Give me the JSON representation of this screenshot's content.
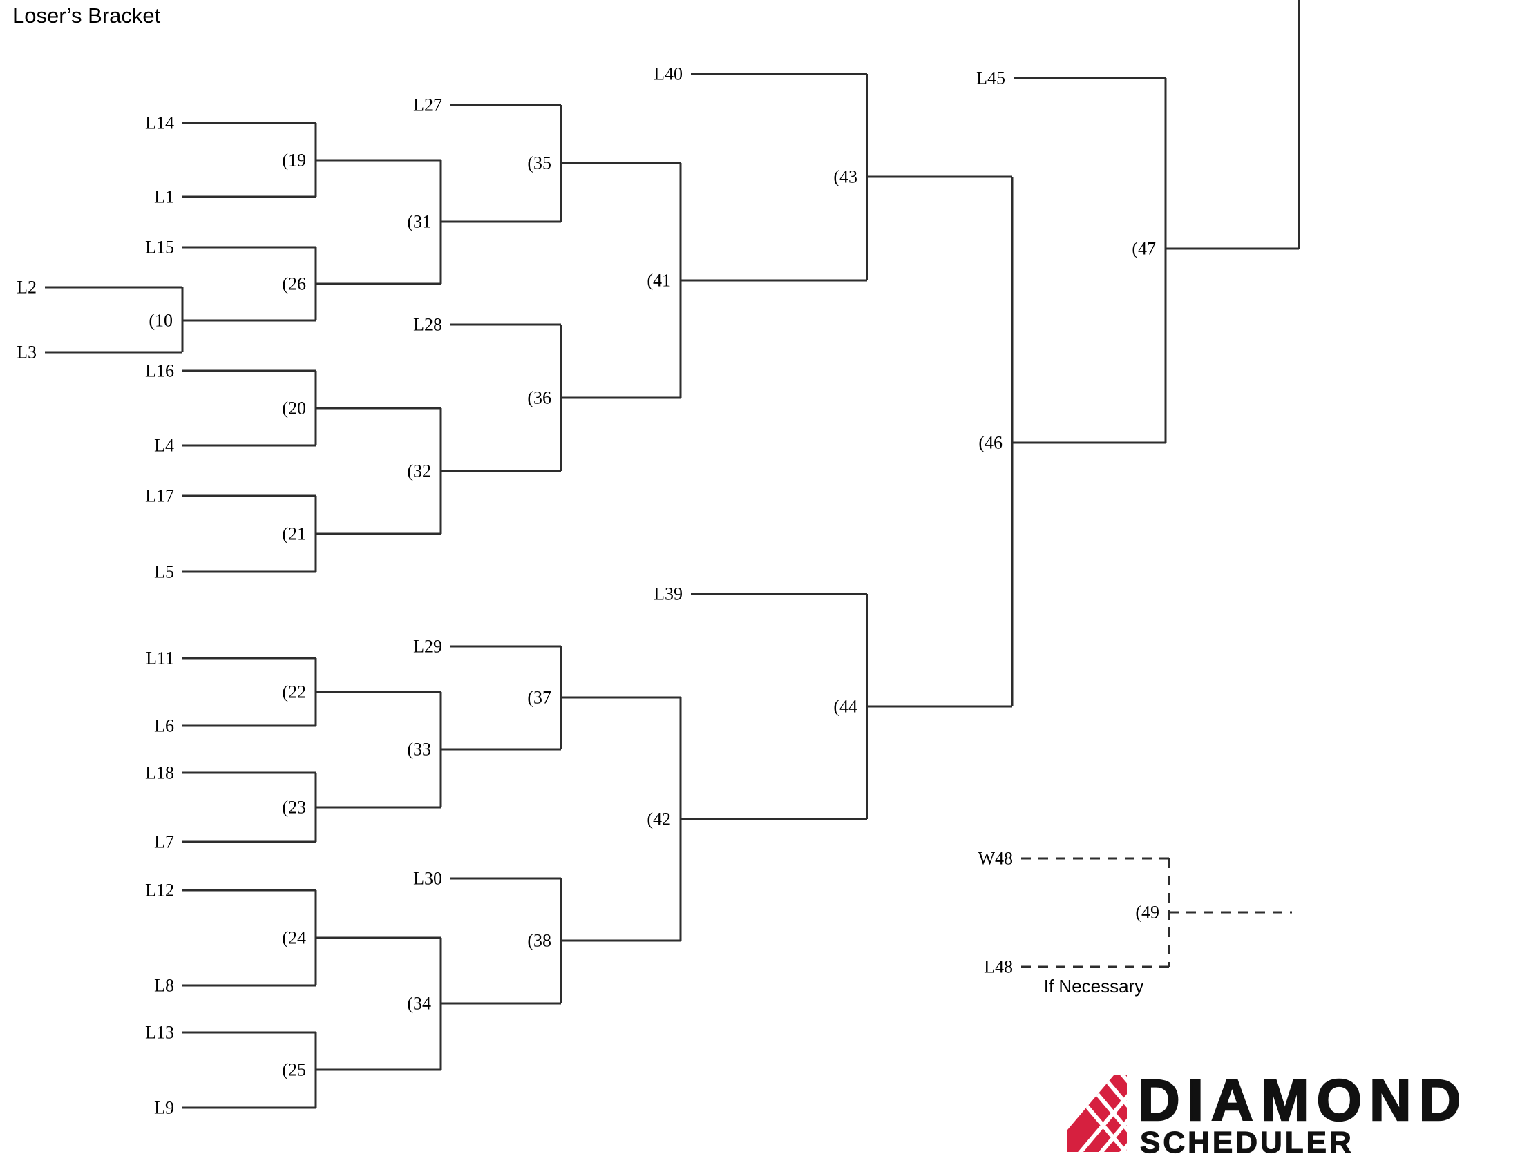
{
  "title": "Loser’s Bracket",
  "colors": {
    "line": "#2d2d2d",
    "text": "#000000",
    "logo_red": "#d6203f",
    "logo_black": "#111111"
  },
  "labels": {
    "L14": "L14",
    "L1": "L1",
    "L15": "L15",
    "L2": "L2",
    "L3": "L3",
    "L16": "L16",
    "L4": "L4",
    "L17": "L17",
    "L5": "L5",
    "L11": "L11",
    "L6": "L6",
    "L18": "L18",
    "L7": "L7",
    "L12": "L12",
    "L8": "L8",
    "L13": "L13",
    "L9": "L9",
    "L27": "L27",
    "L28": "L28",
    "L29": "L29",
    "L30": "L30",
    "L40": "L40",
    "L39": "L39",
    "L45": "L45",
    "W48": "W48",
    "L48": "L48",
    "g10": "(10",
    "g19": "(19",
    "g20": "(20",
    "g21": "(21",
    "g22": "(22",
    "g23": "(23",
    "g24": "(24",
    "g25": "(25",
    "g26": "(26",
    "g31": "(31",
    "g32": "(32",
    "g33": "(33",
    "g34": "(34",
    "g35": "(35",
    "g36": "(36",
    "g37": "(37",
    "g38": "(38",
    "g41": "(41",
    "g42": "(42",
    "g43": "(43",
    "g44": "(44",
    "g46": "(46",
    "g47": "(47",
    "g49": "(49"
  },
  "structure": {
    "games": [
      {
        "game": "(10",
        "top": "L2",
        "bottom": "L3"
      },
      {
        "game": "(19",
        "top": "L14",
        "bottom": "L1"
      },
      {
        "game": "(26",
        "top": "L15",
        "bottom": "winner-g10"
      },
      {
        "game": "(20",
        "top": "L16",
        "bottom": "L4"
      },
      {
        "game": "(21",
        "top": "L17",
        "bottom": "L5"
      },
      {
        "game": "(22",
        "top": "L11",
        "bottom": "L6"
      },
      {
        "game": "(23",
        "top": "L18",
        "bottom": "L7"
      },
      {
        "game": "(24",
        "top": "L12",
        "bottom": "L8"
      },
      {
        "game": "(25",
        "top": "L13",
        "bottom": "L9"
      },
      {
        "game": "(31",
        "top": "winner-g19",
        "bottom": "winner-g26"
      },
      {
        "game": "(32",
        "top": "winner-g20",
        "bottom": "winner-g21"
      },
      {
        "game": "(33",
        "top": "winner-g22",
        "bottom": "winner-g23"
      },
      {
        "game": "(34",
        "top": "winner-g24",
        "bottom": "winner-g25"
      },
      {
        "game": "(35",
        "top": "L27",
        "bottom": "winner-g31"
      },
      {
        "game": "(36",
        "top": "L28",
        "bottom": "winner-g32"
      },
      {
        "game": "(37",
        "top": "L29",
        "bottom": "winner-g33"
      },
      {
        "game": "(38",
        "top": "L30",
        "bottom": "winner-g34"
      },
      {
        "game": "(41",
        "top": "winner-g35",
        "bottom": "winner-g36"
      },
      {
        "game": "(42",
        "top": "winner-g37",
        "bottom": "winner-g38"
      },
      {
        "game": "(43",
        "top": "L40",
        "bottom": "winner-g41"
      },
      {
        "game": "(44",
        "top": "L39",
        "bottom": "winner-g42"
      },
      {
        "game": "(46",
        "top": "winner-g43",
        "bottom": "winner-g44"
      },
      {
        "game": "(47",
        "top": "L45",
        "bottom": "winner-g46"
      },
      {
        "game": "(49",
        "top": "W48",
        "bottom": "L48"
      }
    ]
  },
  "if_necessary": {
    "note": "If Necessary"
  },
  "logo": {
    "title": "DIAMOND",
    "subtitle": "SCHEDULER"
  }
}
